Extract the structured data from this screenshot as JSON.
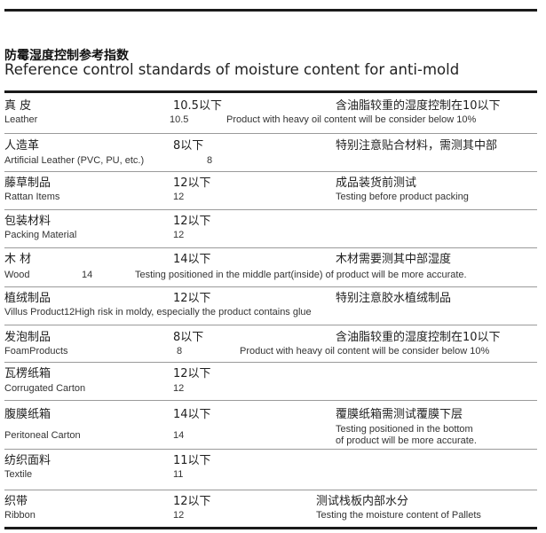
{
  "title": {
    "cn": "防霉湿度控制参考指数",
    "en": "Reference control standards of moisture content for anti-mold"
  },
  "rows": [
    {
      "name_cn": "真 皮",
      "value_cn": "10.5以下",
      "note_cn": "含油脂较重的湿度控制在10以下",
      "name_en": "Leather",
      "value_en": "10.5",
      "note_en": "Product with heavy oil content will be consider below 10%"
    },
    {
      "name_cn": "人造革",
      "value_cn": "8以下",
      "note_cn": "特别注意贴合材料，需测其中部",
      "name_en": "Artificial Leather (PVC, PU, etc.)",
      "value_en": "8",
      "note_en": ""
    },
    {
      "name_cn": "藤草制品",
      "value_cn": "12以下",
      "note_cn": "成品装货前测试",
      "name_en": "Rattan Items",
      "value_en": "12",
      "note_en": "Testing before product packing"
    },
    {
      "name_cn": "包装材料",
      "value_cn": "12以下",
      "note_cn": "",
      "name_en": "Packing Material",
      "value_en": "12",
      "note_en": ""
    },
    {
      "name_cn": "木 材",
      "value_cn": "14以下",
      "note_cn": "木材需要测其中部湿度",
      "name_en": "Wood",
      "value_en": "14",
      "note_en": "Testing positioned in the middle part(inside) of product will be more accurate."
    },
    {
      "name_cn": "植绒制品",
      "value_cn": "12以下",
      "note_cn": "特别注意胶水植绒制品",
      "name_en": "Villus Product12High risk in moldy, especially the product contains  glue",
      "value_en": "",
      "note_en": ""
    },
    {
      "name_cn": "发泡制品",
      "value_cn": "8以下",
      "note_cn": "含油脂较重的湿度控制在10以下",
      "name_en": "FoamProducts",
      "value_en": "8",
      "note_en": "Product with heavy oil content will be consider below 10%"
    },
    {
      "name_cn": "瓦楞纸箱",
      "value_cn": "12以下",
      "note_cn": "",
      "name_en": "Corrugated Carton",
      "value_en": "12",
      "note_en": ""
    },
    {
      "name_cn": "腹膜纸箱",
      "value_cn": "14以下",
      "note_cn": "覆膜纸箱需测试覆膜下层",
      "name_en": "Peritoneal Carton",
      "value_en": "14",
      "note_en": "Testing positioned in the bottom",
      "note_en_2": "of product will be more accurate."
    },
    {
      "name_cn": "纺织面料",
      "value_cn": "11以下",
      "note_cn": "",
      "name_en": "Textile",
      "value_en": "11",
      "note_en": ""
    },
    {
      "name_cn": "织带",
      "value_cn": "12以下",
      "note_cn": "测试栈板内部水分",
      "name_en": "Ribbon",
      "value_en": "12",
      "note_en": "Testing the moisture content of Pallets"
    }
  ]
}
